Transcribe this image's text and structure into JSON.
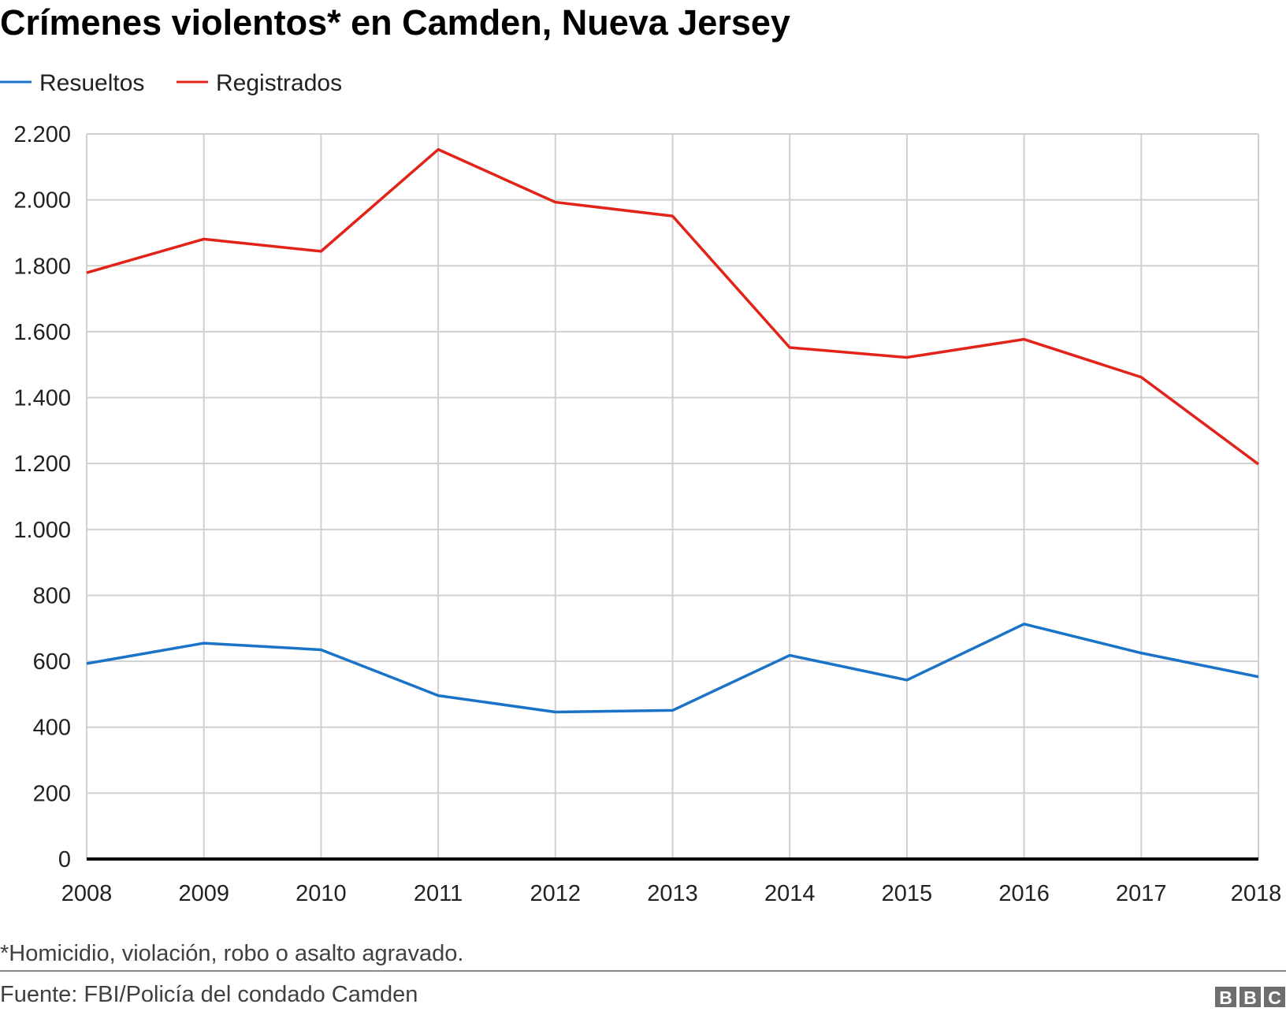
{
  "chart_data": {
    "type": "line",
    "title": "Crímenes violentos* en Camden, Nueva Jersey",
    "xlabel": "",
    "ylabel": "",
    "x": [
      2008,
      2009,
      2010,
      2011,
      2012,
      2013,
      2014,
      2015,
      2016,
      2017,
      2018
    ],
    "x_tick_labels": [
      "2008",
      "2009",
      "2010",
      "2011",
      "2012",
      "2013",
      "2014",
      "2015",
      "2016",
      "2017",
      "2018"
    ],
    "ylim": [
      0,
      2200
    ],
    "y_ticks": [
      0,
      200,
      400,
      600,
      800,
      1000,
      1200,
      1400,
      1600,
      1800,
      2000,
      2200
    ],
    "y_tick_labels": [
      "0",
      "200",
      "400",
      "600",
      "800",
      "1.000",
      "1.200",
      "1.400",
      "1.600",
      "1.800",
      "2.000",
      "2.200"
    ],
    "grid": true,
    "legend_placement": "top-left",
    "series": [
      {
        "name": "Resueltos",
        "color": "#1a73c7",
        "values": [
          593,
          655,
          635,
          496,
          446,
          451,
          618,
          543,
          713,
          625,
          553
        ]
      },
      {
        "name": "Registrados",
        "color": "#e2231a",
        "values": [
          1779,
          1881,
          1844,
          2153,
          1993,
          1951,
          1552,
          1522,
          1577,
          1462,
          1198
        ]
      }
    ]
  },
  "footnote": "*Homicidio, violación, robo o asalto agravado.",
  "source": "Fuente: FBI/Policía del condado Camden",
  "logo": "BBC"
}
